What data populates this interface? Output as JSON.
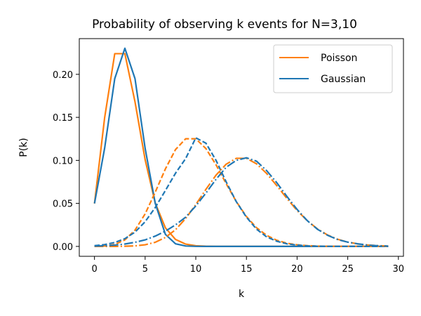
{
  "chart_data": {
    "type": "line",
    "title": "Probability of observing k events for N=3,10",
    "xlabel": "k",
    "ylabel": "P(k)",
    "xlim": [
      -1.5,
      30.5
    ],
    "ylim": [
      -0.0115,
      0.2415
    ],
    "xticks": [
      0,
      5,
      10,
      15,
      20,
      25,
      30
    ],
    "yticks": [
      0.0,
      0.05,
      0.1,
      0.15,
      0.2
    ],
    "ytick_labels": [
      "0.00",
      "0.05",
      "0.10",
      "0.15",
      "0.20"
    ],
    "grid": false,
    "legend": {
      "placement": "top-right",
      "entries": [
        {
          "name": "Poisson",
          "color": "#ff7f0e"
        },
        {
          "name": "Gaussian",
          "color": "#1f77b4"
        }
      ]
    },
    "x": [
      0,
      1,
      2,
      3,
      4,
      5,
      6,
      7,
      8,
      9,
      10,
      11,
      12,
      13,
      14,
      15,
      16,
      17,
      18,
      19,
      20,
      21,
      22,
      23,
      24,
      25,
      26,
      27,
      28,
      29
    ],
    "series": [
      {
        "name": "Poisson",
        "color": "#ff7f0e",
        "style": "solid",
        "values": [
          0.0498,
          0.1494,
          0.224,
          0.224,
          0.168,
          0.1008,
          0.0504,
          0.0216,
          0.0081,
          0.0027,
          0.0008,
          0.0002,
          0.0001,
          0,
          0,
          0,
          0,
          0,
          0,
          0,
          0,
          0,
          0,
          0,
          0,
          0,
          0,
          0,
          0,
          0
        ]
      },
      {
        "name": "Gaussian",
        "color": "#1f77b4",
        "style": "solid",
        "values": [
          0.05,
          0.114,
          0.195,
          0.2303,
          0.195,
          0.114,
          0.05,
          0.014,
          0.003,
          0.0005,
          0.0001,
          0,
          0,
          0,
          0,
          0,
          0,
          0,
          0,
          0,
          0,
          0,
          0,
          0,
          0,
          0,
          0,
          0,
          0,
          0
        ]
      },
      {
        "name": "Poisson",
        "color": "#ff7f0e",
        "style": "dashed",
        "values": [
          0.0,
          0.0005,
          0.0023,
          0.0076,
          0.0189,
          0.0378,
          0.0631,
          0.0901,
          0.1126,
          0.1251,
          0.1251,
          0.1137,
          0.0948,
          0.0729,
          0.0521,
          0.0347,
          0.0217,
          0.0128,
          0.0071,
          0.0037,
          0.0019,
          0.0009,
          0.0004,
          0.0002,
          0.0001,
          0,
          0,
          0,
          0,
          0
        ]
      },
      {
        "name": "Gaussian",
        "color": "#1f77b4",
        "style": "dashed",
        "values": [
          0.0009,
          0.0021,
          0.0046,
          0.009,
          0.0166,
          0.0287,
          0.0452,
          0.065,
          0.0851,
          0.1021,
          0.1262,
          0.12,
          0.1,
          0.075,
          0.052,
          0.034,
          0.02,
          0.011,
          0.006,
          0.003,
          0.0015,
          0.0007,
          0.0003,
          0.0001,
          0,
          0,
          0,
          0,
          0,
          0
        ]
      },
      {
        "name": "Poisson",
        "color": "#ff7f0e",
        "style": "dashdot",
        "values": [
          0.0,
          0.0,
          0.0,
          0.0002,
          0.0006,
          0.0019,
          0.0048,
          0.0104,
          0.0194,
          0.0324,
          0.0486,
          0.0663,
          0.0829,
          0.0956,
          0.1024,
          0.1024,
          0.096,
          0.0847,
          0.0706,
          0.0557,
          0.0418,
          0.0299,
          0.0204,
          0.0133,
          0.0083,
          0.005,
          0.0029,
          0.0016,
          0.0009,
          0.0004
        ]
      },
      {
        "name": "Gaussian",
        "color": "#1f77b4",
        "style": "dashdot",
        "values": [
          0.0004,
          0.0008,
          0.0015,
          0.0028,
          0.0048,
          0.0076,
          0.012,
          0.0178,
          0.025,
          0.034,
          0.047,
          0.062,
          0.078,
          0.092,
          0.1,
          0.103,
          0.099,
          0.088,
          0.074,
          0.058,
          0.043,
          0.03,
          0.02,
          0.013,
          0.008,
          0.005,
          0.003,
          0.0015,
          0.0008,
          0.0004
        ]
      }
    ]
  }
}
